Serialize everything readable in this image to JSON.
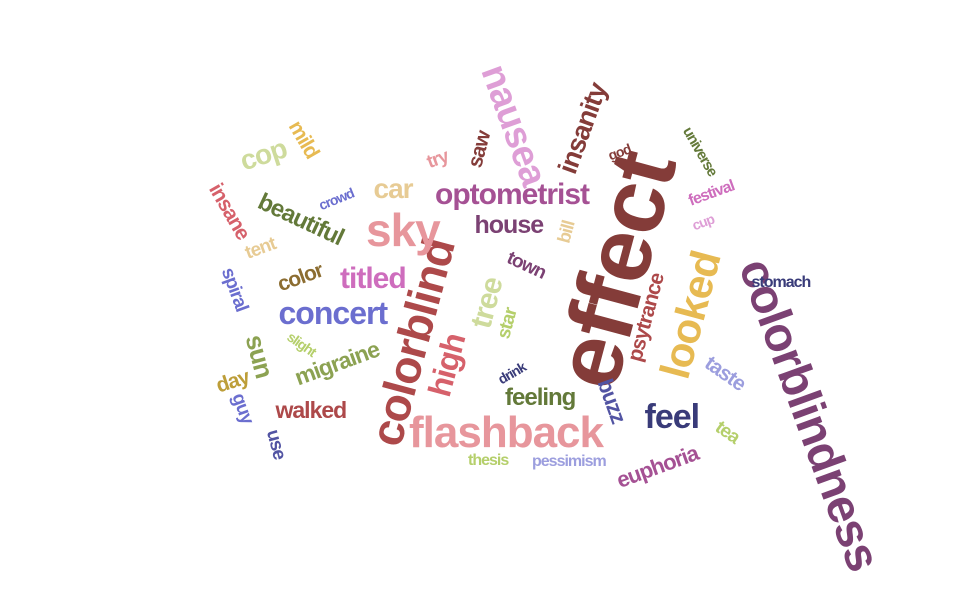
{
  "words": [
    {
      "text": "effect",
      "color": "#843c39"
    },
    {
      "text": "colorblindness",
      "color": "#7b4173"
    },
    {
      "text": "colorblind",
      "color": "#ad494a"
    },
    {
      "text": "flashback",
      "color": "#e7969c"
    },
    {
      "text": "looked",
      "color": "#e7ba52"
    },
    {
      "text": "sky",
      "color": "#e7969c"
    },
    {
      "text": "nausea",
      "color": "#de9ed6"
    },
    {
      "text": "high",
      "color": "#d6616b"
    },
    {
      "text": "optometrist",
      "color": "#a55194"
    },
    {
      "text": "concert",
      "color": "#6b6ecf"
    },
    {
      "text": "tree",
      "color": "#cedb9c"
    },
    {
      "text": "insanity",
      "color": "#843c39"
    },
    {
      "text": "titled",
      "color": "#ce6dbd"
    },
    {
      "text": "feel",
      "color": "#393b79"
    },
    {
      "text": "car",
      "color": "#e7cb94"
    },
    {
      "text": "house",
      "color": "#7b4173"
    },
    {
      "text": "cop",
      "color": "#cedb9c"
    },
    {
      "text": "beautiful",
      "color": "#637939"
    },
    {
      "text": "sun",
      "color": "#8ca252"
    },
    {
      "text": "migraine",
      "color": "#8ca252"
    },
    {
      "text": "feeling",
      "color": "#637939"
    },
    {
      "text": "buzz",
      "color": "#5254a3"
    },
    {
      "text": "euphoria",
      "color": "#a55194"
    },
    {
      "text": "walked",
      "color": "#ad494a"
    },
    {
      "text": "psytrance",
      "color": "#ad494a"
    },
    {
      "text": "town",
      "color": "#7b4173"
    },
    {
      "text": "insane",
      "color": "#d6616b"
    },
    {
      "text": "saw",
      "color": "#843c39"
    },
    {
      "text": "color",
      "color": "#8c6d31"
    },
    {
      "text": "mild",
      "color": "#e7ba52"
    },
    {
      "text": "spiral",
      "color": "#6b6ecf"
    },
    {
      "text": "tent",
      "color": "#e7cb94"
    },
    {
      "text": "star",
      "color": "#b5cf6b"
    },
    {
      "text": "taste",
      "color": "#9c9ede"
    },
    {
      "text": "day",
      "color": "#bd9e39"
    },
    {
      "text": "guy",
      "color": "#6b6ecf"
    },
    {
      "text": "use",
      "color": "#5254a3"
    },
    {
      "text": "tea",
      "color": "#b5cf6b"
    },
    {
      "text": "try",
      "color": "#e7969c"
    },
    {
      "text": "bill",
      "color": "#e7cb94"
    },
    {
      "text": "universe",
      "color": "#637939"
    },
    {
      "text": "festival",
      "color": "#ce6dbd"
    },
    {
      "text": "cup",
      "color": "#de9ed6"
    },
    {
      "text": "god",
      "color": "#843c39"
    },
    {
      "text": "crowd",
      "color": "#6b6ecf"
    },
    {
      "text": "stomach",
      "color": "#393b79"
    },
    {
      "text": "slight",
      "color": "#b5cf6b"
    },
    {
      "text": "drink",
      "color": "#393b79"
    },
    {
      "text": "thesis",
      "color": "#b5cf6b"
    },
    {
      "text": "pessimism",
      "color": "#9c9ede"
    }
  ]
}
